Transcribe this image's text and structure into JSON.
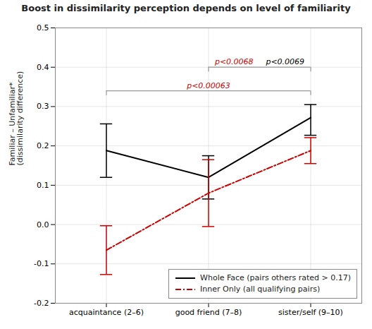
{
  "chart_data": {
    "type": "line",
    "title": "Boost in dissimilarity perception depends on level of familiarity",
    "categories": [
      "acquaintance (2–6)",
      "good friend (7–8)",
      "sister/self (9–10)"
    ],
    "ylabel": "Familiar – Unfamiliar*\n(dissimilarity difference)",
    "ylim": [
      -0.2,
      0.5
    ],
    "yticks": [
      -0.2,
      -0.1,
      {
        "value": 0,
        "label": "0.0"
      },
      0.1,
      0.2,
      0.3,
      0.4,
      0.5
    ],
    "grid": true,
    "legend": "lower right",
    "series": [
      {
        "name": "Whole Face (pairs others rated > 0.17)",
        "color": "#000000",
        "line_style": "solid",
        "values": [
          0.188,
          0.12,
          0.272
        ],
        "error_low": [
          0.068,
          0.055,
          0.045
        ],
        "error_high": [
          0.068,
          0.055,
          0.033
        ]
      },
      {
        "name": "Inner Only (all qualifying pairs)",
        "color": "#cc0000",
        "line_style": "dashdot",
        "values": [
          -0.065,
          0.08,
          0.188
        ],
        "error_low": [
          0.062,
          0.085,
          0.033
        ],
        "error_high": [
          0.062,
          0.085,
          0.033
        ]
      }
    ],
    "annotations": [
      {
        "from": "acquaintance (2–6)",
        "to": "sister/self (9–10)",
        "y": 0.34,
        "color": "#999999",
        "texts": [
          {
            "text": "p<0.00063",
            "color": "#cc0000"
          }
        ]
      },
      {
        "from": "good friend (7–8)",
        "to": "sister/self (9–10)",
        "y": 0.4,
        "color": "#999999",
        "texts": [
          {
            "text": "p<0.0068",
            "color": "#cc0000"
          },
          {
            "text": "p<0.0069",
            "color": "#000000"
          }
        ]
      }
    ]
  }
}
